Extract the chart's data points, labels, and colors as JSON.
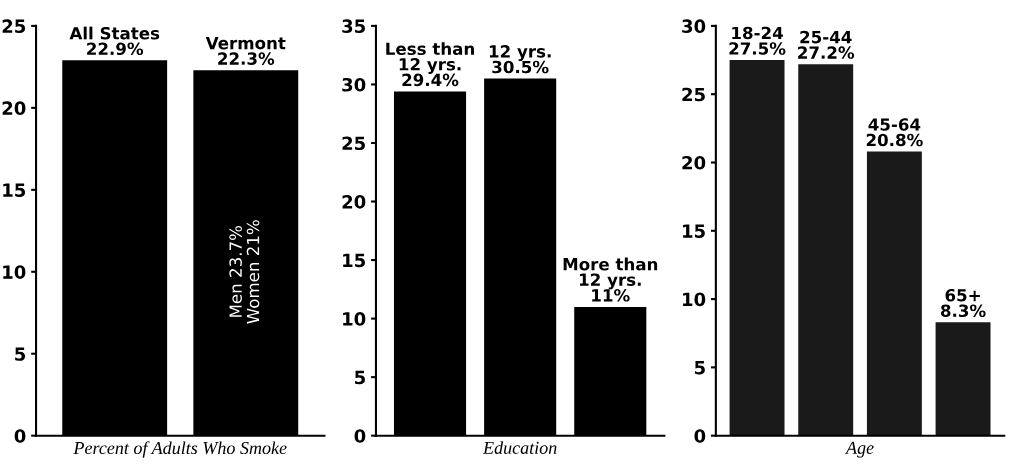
{
  "chart_data": [
    {
      "type": "bar",
      "categories": [
        "All States",
        "Vermont"
      ],
      "values": [
        22.9,
        22.3
      ],
      "value_labels": [
        "22.9%",
        "22.3%"
      ],
      "color": "#000000",
      "ylim": [
        0,
        25
      ],
      "yticks": [
        0,
        5,
        10,
        15,
        20,
        25
      ],
      "xlabel": "Percent of Adults Who Smoke",
      "tick_labels": "y",
      "grid": false,
      "legend": false,
      "annotations": [
        "Men 23.7%\nWomen 21%"
      ]
    },
    {
      "type": "bar",
      "categories": [
        "Less than\n12 yrs.",
        "12 yrs.",
        "More than\n12 yrs."
      ],
      "values": [
        29.4,
        30.5,
        11
      ],
      "value_labels": [
        "29.4%",
        "30.5%",
        "11%"
      ],
      "color": "#000000",
      "ylim": [
        0,
        35
      ],
      "yticks": [
        0,
        5,
        10,
        15,
        20,
        25,
        30,
        35
      ],
      "xlabel": "Education",
      "tick_labels": "y",
      "grid": false,
      "legend": false
    },
    {
      "type": "bar",
      "categories": [
        "18-24",
        "25-44",
        "45-64",
        "65+"
      ],
      "values": [
        27.5,
        27.2,
        20.8,
        8.3
      ],
      "value_labels": [
        "27.5%",
        "27.2%",
        "20.8%",
        "8.3%"
      ],
      "color": "#1a1a1a",
      "ylim": [
        0,
        30
      ],
      "yticks": [
        0,
        5,
        10,
        15,
        20,
        25,
        30
      ],
      "xlabel": "Age",
      "tick_labels": "y",
      "grid": false,
      "legend": false
    }
  ]
}
